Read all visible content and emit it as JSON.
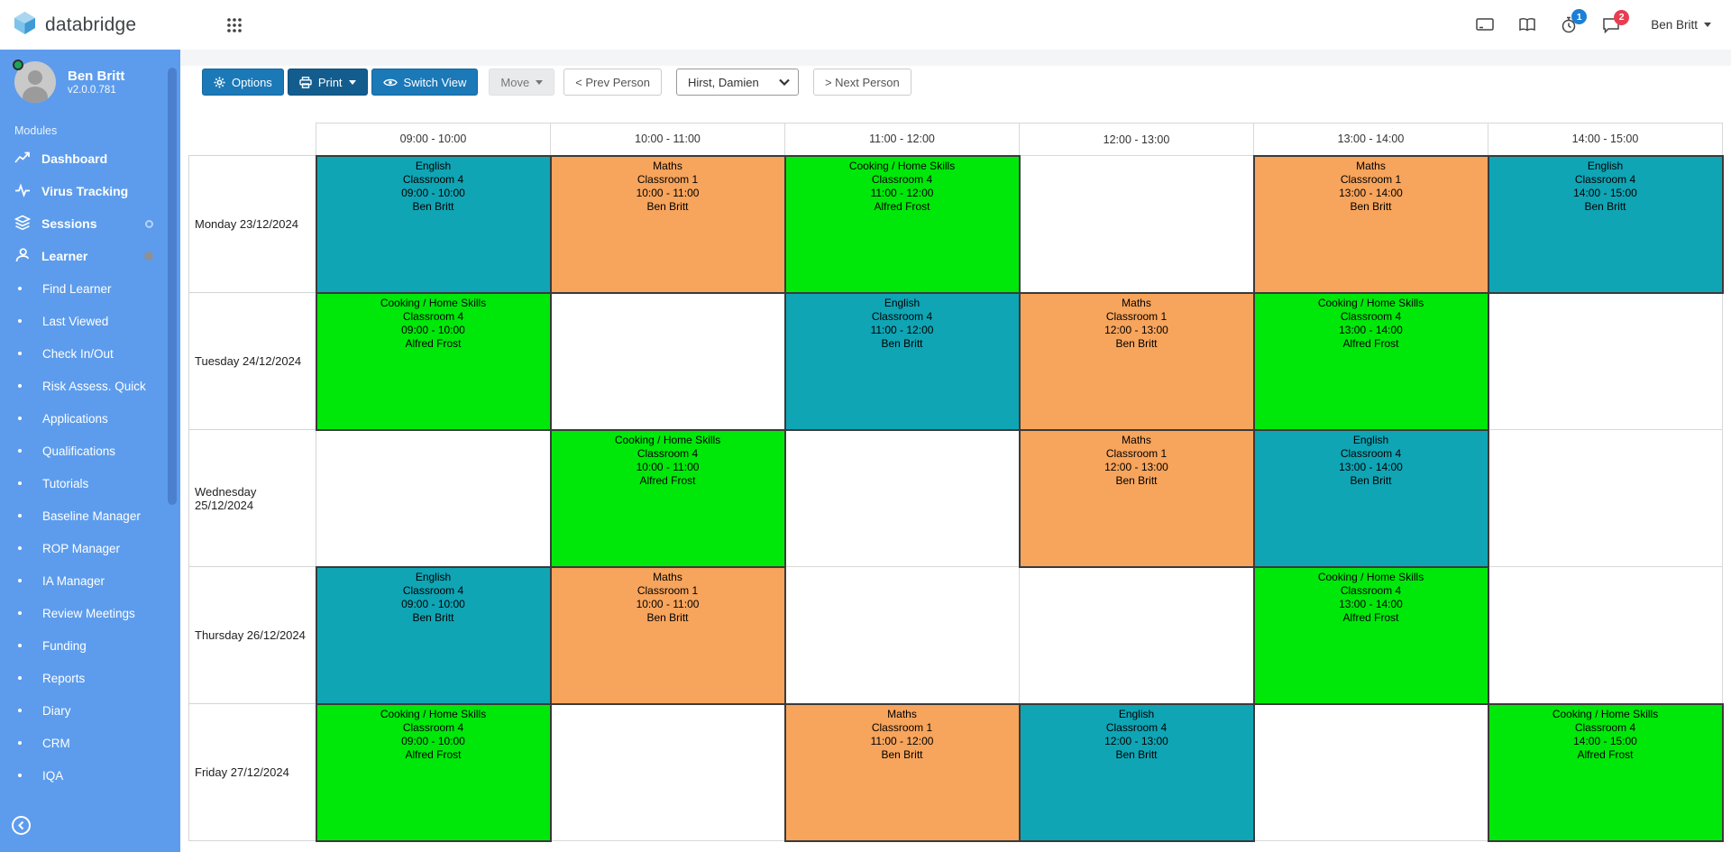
{
  "header": {
    "brand": "databridge",
    "user_label": "Ben Britt",
    "badges": {
      "timer_count": "1",
      "messages_count": "2"
    }
  },
  "sidebar": {
    "user": {
      "name": "Ben Britt",
      "version": "v2.0.0.781"
    },
    "section_label": "Modules",
    "items": [
      {
        "label": "Dashboard",
        "icon": "chart-icon",
        "indicator": null
      },
      {
        "label": "Virus Tracking",
        "icon": "pulse-icon",
        "indicator": null
      },
      {
        "label": "Sessions",
        "icon": "layers-icon",
        "indicator": "hollow"
      },
      {
        "label": "Learner",
        "icon": "person-icon",
        "indicator": "filled"
      }
    ],
    "subitems": [
      "Find Learner",
      "Last Viewed",
      "Check In/Out",
      "Risk Assess. Quick",
      "Applications",
      "Qualifications",
      "Tutorials",
      "Baseline Manager",
      "ROP Manager",
      "IA Manager",
      "Review Meetings",
      "Funding",
      "Reports",
      "Diary",
      "CRM",
      "IQA"
    ]
  },
  "toolbar": {
    "options_label": "Options",
    "print_label": "Print",
    "switch_view_label": "Switch View",
    "move_label": "Move",
    "prev_label": "< Prev Person",
    "person_selected": "Hirst, Damien",
    "next_label": "> Next Person"
  },
  "colors": {
    "sidebar_blue": "#5d9cec",
    "button_blue": "#1b79b8",
    "button_blue_dark": "#135d8e",
    "badge_blue": "#1d7fd6",
    "badge_red": "#e83e52",
    "cell_teal": "#0fa5b5",
    "cell_orange": "#f7a45c",
    "cell_green": "#00e80a"
  },
  "timetable": {
    "time_slots": [
      "09:00 - 10:00",
      "10:00 - 11:00",
      "11:00 - 12:00",
      "12:00 - 13:00",
      "13:00 - 14:00",
      "14:00 - 15:00"
    ],
    "days": [
      {
        "label": "Monday 23/12/2024",
        "cells": [
          {
            "subject": "English",
            "room": "Classroom 4",
            "time": "09:00 - 10:00",
            "teacher": "Ben Britt",
            "color": "cell_teal"
          },
          {
            "subject": "Maths",
            "room": "Classroom 1",
            "time": "10:00 - 11:00",
            "teacher": "Ben Britt",
            "color": "cell_orange"
          },
          {
            "subject": "Cooking / Home Skills",
            "room": "Classroom 4",
            "time": "11:00 - 12:00",
            "teacher": "Alfred Frost",
            "color": "cell_green"
          },
          null,
          {
            "subject": "Maths",
            "room": "Classroom 1",
            "time": "13:00 - 14:00",
            "teacher": "Ben Britt",
            "color": "cell_orange"
          },
          {
            "subject": "English",
            "room": "Classroom 4",
            "time": "14:00 - 15:00",
            "teacher": "Ben Britt",
            "color": "cell_teal"
          }
        ]
      },
      {
        "label": "Tuesday 24/12/2024",
        "cells": [
          {
            "subject": "Cooking / Home Skills",
            "room": "Classroom 4",
            "time": "09:00 - 10:00",
            "teacher": "Alfred Frost",
            "color": "cell_green"
          },
          null,
          {
            "subject": "English",
            "room": "Classroom 4",
            "time": "11:00 - 12:00",
            "teacher": "Ben Britt",
            "color": "cell_teal"
          },
          {
            "subject": "Maths",
            "room": "Classroom 1",
            "time": "12:00 - 13:00",
            "teacher": "Ben Britt",
            "color": "cell_orange"
          },
          {
            "subject": "Cooking / Home Skills",
            "room": "Classroom 4",
            "time": "13:00 - 14:00",
            "teacher": "Alfred Frost",
            "color": "cell_green"
          },
          null
        ]
      },
      {
        "label": "Wednesday 25/12/2024",
        "cells": [
          null,
          {
            "subject": "Cooking / Home Skills",
            "room": "Classroom 4",
            "time": "10:00 - 11:00",
            "teacher": "Alfred Frost",
            "color": "cell_green"
          },
          null,
          {
            "subject": "Maths",
            "room": "Classroom 1",
            "time": "12:00 - 13:00",
            "teacher": "Ben Britt",
            "color": "cell_orange"
          },
          {
            "subject": "English",
            "room": "Classroom 4",
            "time": "13:00 - 14:00",
            "teacher": "Ben Britt",
            "color": "cell_teal"
          },
          null
        ]
      },
      {
        "label": "Thursday 26/12/2024",
        "cells": [
          {
            "subject": "English",
            "room": "Classroom 4",
            "time": "09:00 - 10:00",
            "teacher": "Ben Britt",
            "color": "cell_teal"
          },
          {
            "subject": "Maths",
            "room": "Classroom 1",
            "time": "10:00 - 11:00",
            "teacher": "Ben Britt",
            "color": "cell_orange"
          },
          null,
          null,
          {
            "subject": "Cooking / Home Skills",
            "room": "Classroom 4",
            "time": "13:00 - 14:00",
            "teacher": "Alfred Frost",
            "color": "cell_green"
          },
          null
        ]
      },
      {
        "label": "Friday 27/12/2024",
        "cells": [
          {
            "subject": "Cooking / Home Skills",
            "room": "Classroom 4",
            "time": "09:00 - 10:00",
            "teacher": "Alfred Frost",
            "color": "cell_green"
          },
          null,
          {
            "subject": "Maths",
            "room": "Classroom 1",
            "time": "11:00 - 12:00",
            "teacher": "Ben Britt",
            "color": "cell_orange"
          },
          {
            "subject": "English",
            "room": "Classroom 4",
            "time": "12:00 - 13:00",
            "teacher": "Ben Britt",
            "color": "cell_teal"
          },
          null,
          {
            "subject": "Cooking / Home Skills",
            "room": "Classroom 4",
            "time": "14:00 - 15:00",
            "teacher": "Alfred Frost",
            "color": "cell_green"
          }
        ]
      }
    ]
  }
}
